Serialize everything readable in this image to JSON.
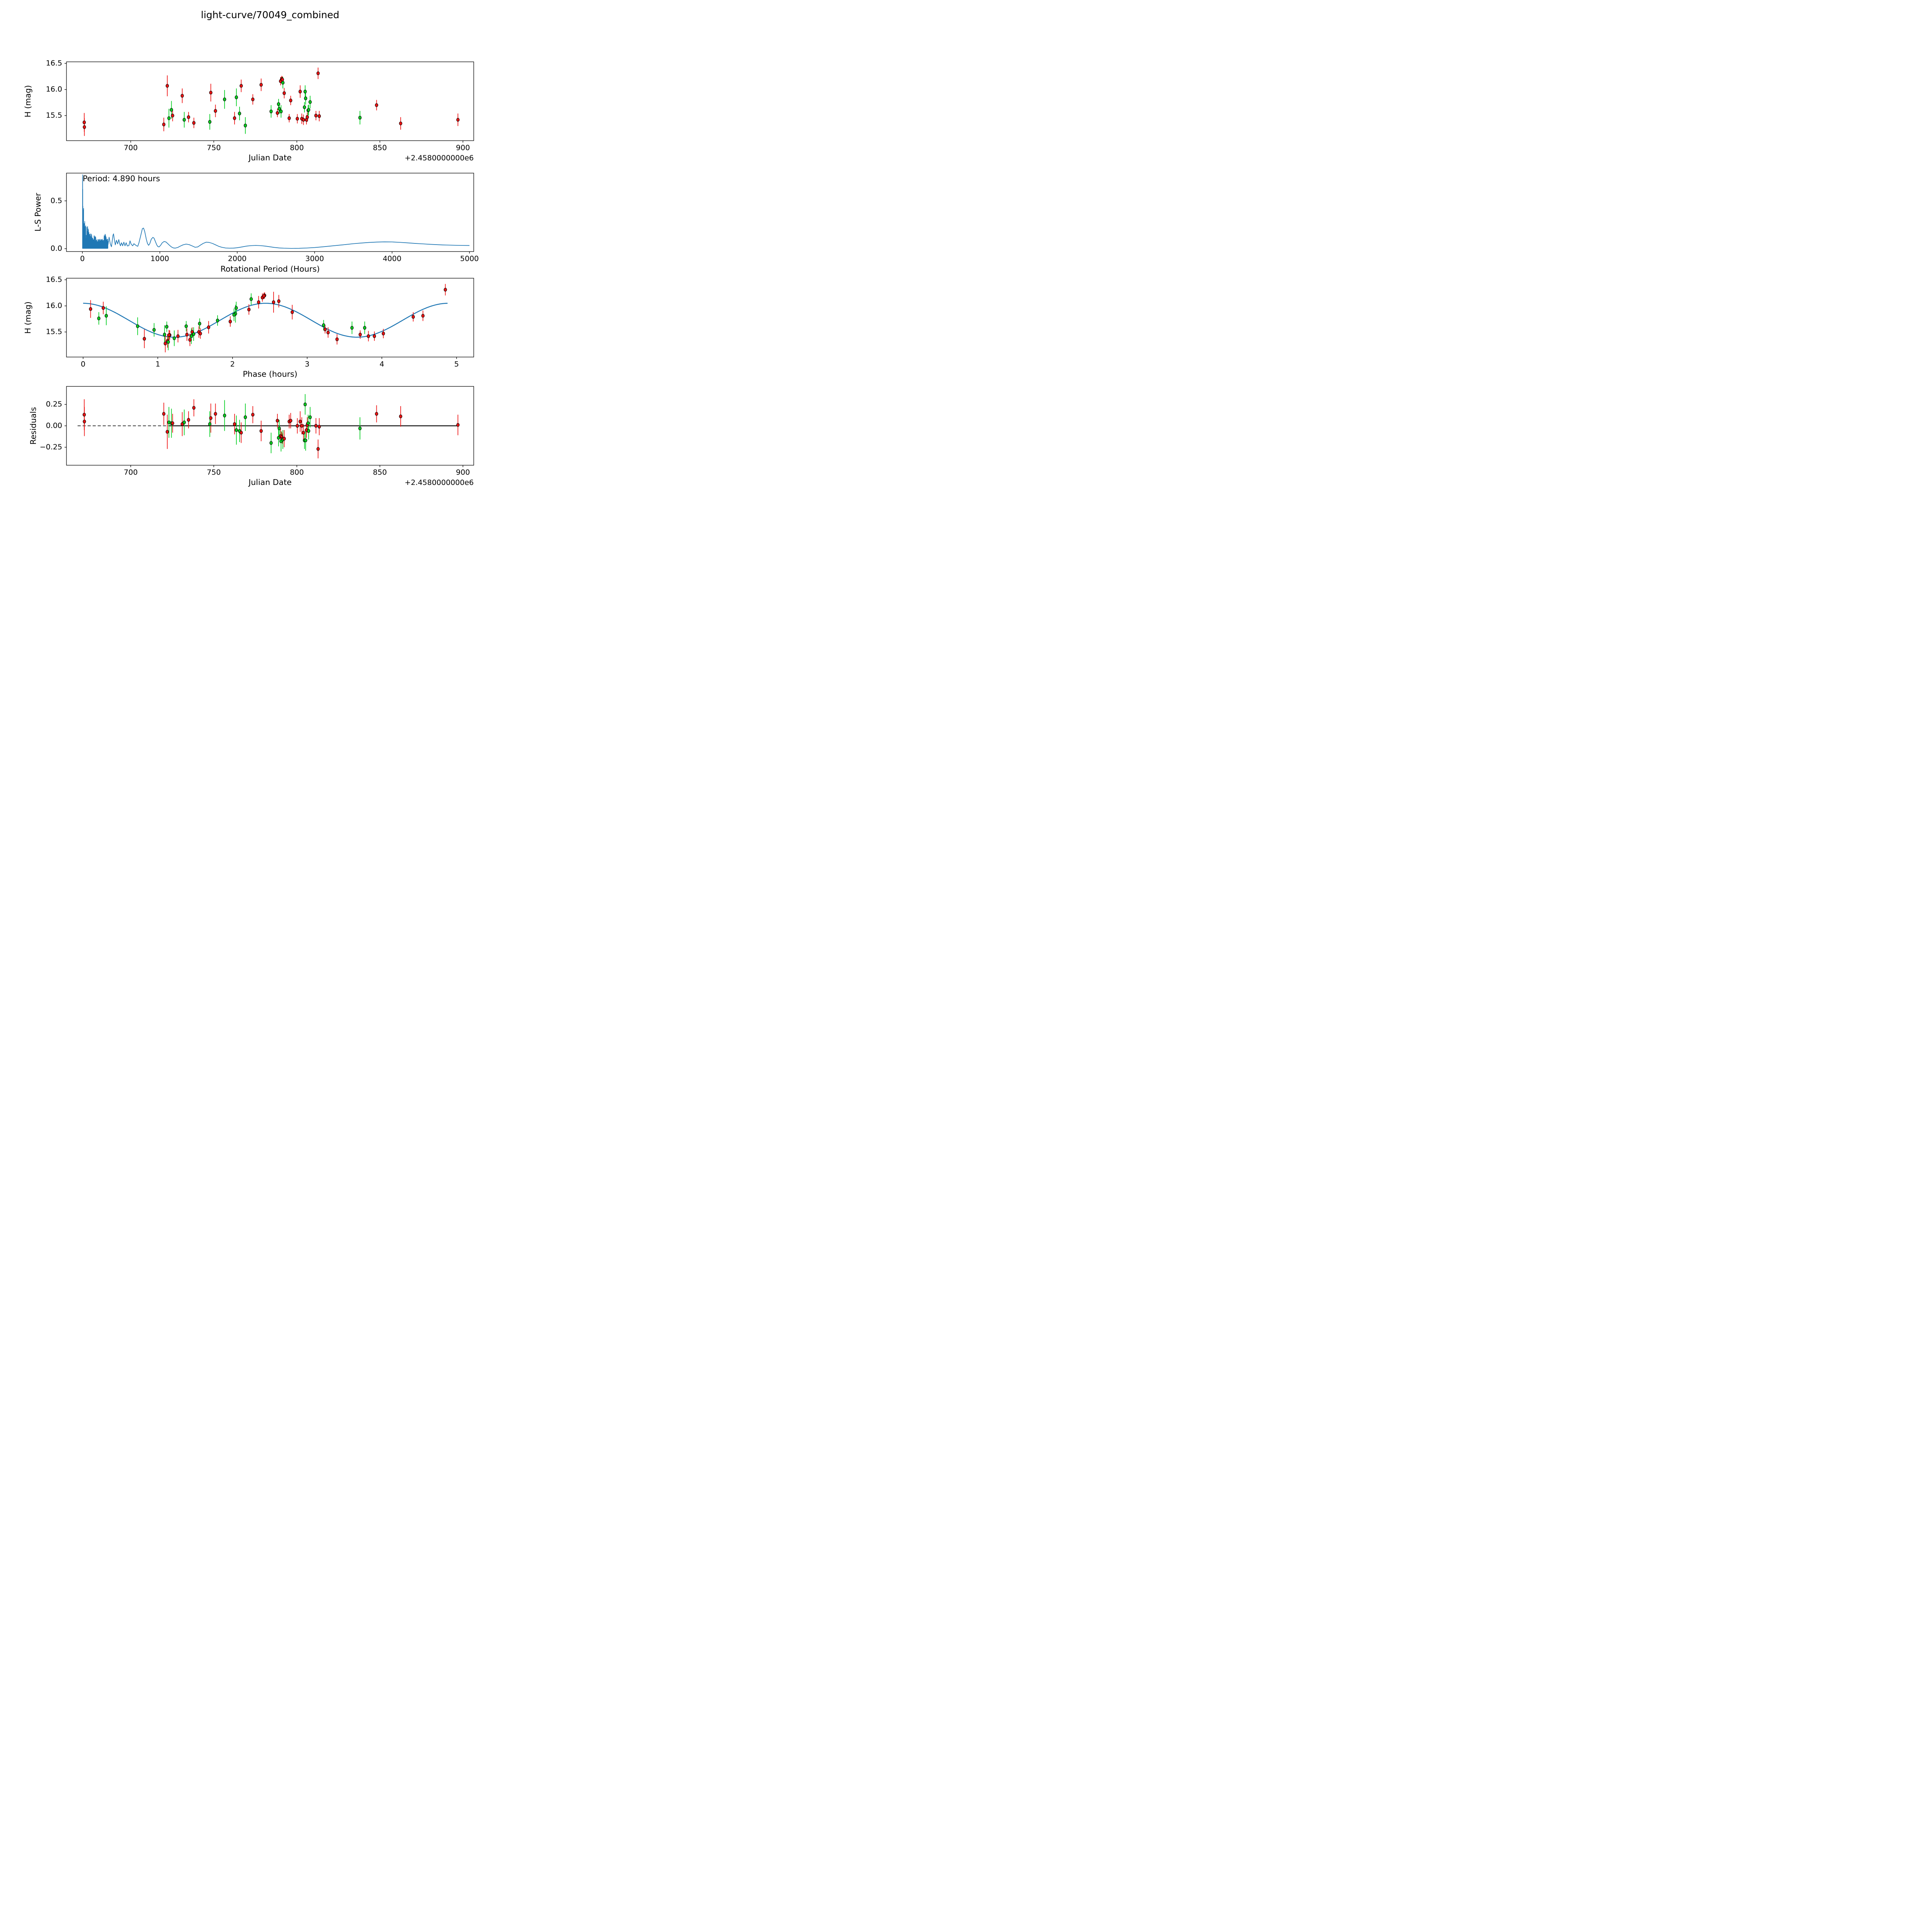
{
  "title": "light-curve/70049_combined",
  "colors": {
    "red_series": "#ee1111",
    "green_series": "#00cd1e",
    "model_line": "#1f77b4",
    "axes": "#000000",
    "background": "#ffffff"
  },
  "observation_fields": [
    "jd",
    "mag",
    "err",
    "color",
    "phase",
    "residual"
  ],
  "observations": [
    [
      672.0,
      15.37,
      0.18,
      "r",
      0.82,
      0.13
    ],
    [
      672.1,
      15.28,
      0.17,
      "r",
      1.1,
      0.05
    ],
    [
      719.9,
      15.33,
      0.13,
      "r",
      1.13,
      0.14
    ],
    [
      722.0,
      16.07,
      0.2,
      "r",
      2.55,
      -0.07
    ],
    [
      723.0,
      15.45,
      0.18,
      "g",
      1.09,
      0.04
    ],
    [
      724.5,
      15.61,
      0.17,
      "g",
      0.73,
      0.03
    ],
    [
      725.2,
      15.5,
      0.11,
      "r",
      1.55,
      0.03
    ],
    [
      731.0,
      15.88,
      0.14,
      "r",
      2.8,
      0.02
    ],
    [
      732.2,
      15.42,
      0.15,
      "g",
      1.45,
      0.04
    ],
    [
      734.8,
      15.47,
      0.1,
      "r",
      1.57,
      0.07
    ],
    [
      738.0,
      15.36,
      0.1,
      "r",
      3.4,
      0.21
    ],
    [
      747.6,
      15.38,
      0.15,
      "g",
      1.22,
      0.02
    ],
    [
      748.2,
      15.94,
      0.17,
      "r",
      0.1,
      0.09
    ],
    [
      751.0,
      15.59,
      0.12,
      "r",
      1.68,
      0.14
    ],
    [
      756.5,
      15.81,
      0.18,
      "g",
      0.31,
      0.12
    ],
    [
      762.5,
      15.45,
      0.12,
      "r",
      1.39,
      0.02
    ],
    [
      763.6,
      15.85,
      0.17,
      "g",
      2.04,
      -0.05
    ],
    [
      765.5,
      15.54,
      0.13,
      "g",
      0.95,
      -0.06
    ],
    [
      766.5,
      16.07,
      0.12,
      "r",
      2.35,
      -0.08
    ],
    [
      769.0,
      15.31,
      0.16,
      "g",
      1.14,
      0.1
    ],
    [
      773.5,
      15.81,
      0.1,
      "r",
      4.55,
      0.13
    ],
    [
      778.5,
      16.09,
      0.12,
      "r",
      2.62,
      -0.06
    ],
    [
      784.5,
      15.58,
      0.12,
      "g",
      3.6,
      -0.2
    ],
    [
      788.3,
      15.55,
      0.08,
      "r",
      3.24,
      0.06
    ],
    [
      789.0,
      15.72,
      0.1,
      "g",
      1.8,
      -0.14
    ],
    [
      789.4,
      15.63,
      0.1,
      "g",
      3.22,
      -0.03
    ],
    [
      790.2,
      16.16,
      0.08,
      "r",
      2.4,
      -0.12
    ],
    [
      790.5,
      15.58,
      0.12,
      "g",
      3.77,
      -0.18
    ],
    [
      790.9,
      16.2,
      0.06,
      "r",
      2.43,
      -0.13
    ],
    [
      791.3,
      16.19,
      0.06,
      "r",
      2.42,
      -0.15
    ],
    [
      791.6,
      16.13,
      0.11,
      "g",
      2.25,
      -0.16
    ],
    [
      792.4,
      15.93,
      0.1,
      "r",
      2.22,
      -0.15
    ],
    [
      795.4,
      15.45,
      0.08,
      "r",
      3.71,
      0.05
    ],
    [
      796.3,
      15.79,
      0.09,
      "r",
      4.42,
      0.06
    ],
    [
      800.3,
      15.44,
      0.09,
      "r",
      1.16,
      0.0
    ],
    [
      802.0,
      15.96,
      0.12,
      "r",
      0.27,
      0.05
    ],
    [
      803.0,
      15.44,
      0.1,
      "r",
      1.15,
      0.0
    ],
    [
      804.0,
      15.42,
      0.1,
      "r",
      3.82,
      -0.08
    ],
    [
      804.6,
      15.66,
      0.1,
      "g",
      1.56,
      -0.17
    ],
    [
      805.0,
      15.96,
      0.12,
      "g",
      2.05,
      0.25
    ],
    [
      805.3,
      15.83,
      0.12,
      "g",
      2.02,
      -0.17
    ],
    [
      805.8,
      15.42,
      0.09,
      "r",
      3.9,
      -0.05
    ],
    [
      806.3,
      15.47,
      0.09,
      "r",
      4.02,
      0.01
    ],
    [
      806.8,
      15.6,
      0.1,
      "g",
      1.12,
      0.03
    ],
    [
      807.1,
      15.61,
      0.1,
      "g",
      1.38,
      -0.06
    ],
    [
      808.0,
      15.76,
      0.12,
      "g",
      0.21,
      0.1
    ],
    [
      811.5,
      15.5,
      0.09,
      "r",
      1.46,
      0.0
    ],
    [
      812.8,
      16.31,
      0.11,
      "r",
      4.85,
      -0.27
    ],
    [
      813.5,
      15.49,
      0.1,
      "r",
      3.28,
      -0.01
    ],
    [
      838.0,
      15.46,
      0.13,
      "g",
      1.48,
      -0.03
    ],
    [
      848.0,
      15.7,
      0.1,
      "r",
      1.97,
      0.14
    ],
    [
      862.5,
      15.35,
      0.12,
      "r",
      1.43,
      0.11
    ],
    [
      897.0,
      15.42,
      0.12,
      "r",
      1.27,
      0.01
    ]
  ],
  "chart_data": [
    {
      "type": "scatter",
      "title": "light-curve/70049_combined",
      "xlabel": "Julian Date",
      "ylabel": "H (mag)",
      "x_offset_label": "+2.4580000000e6",
      "xlim": [
        661.3,
        906.5
      ],
      "ylim": [
        15.02,
        16.53
      ],
      "xticks": [
        700,
        750,
        800,
        850,
        900
      ],
      "xtick_labels": [
        "700",
        "750",
        "800",
        "850",
        "900"
      ],
      "yticks": [
        15.5,
        16.0,
        16.5
      ],
      "ytick_labels": [
        "15.5",
        "16.0",
        "16.5"
      ],
      "grid": false,
      "x_field": "jd",
      "y_field": "mag",
      "err_field": "err"
    },
    {
      "type": "line",
      "xlabel": "Rotational Period (Hours)",
      "ylabel": "L-S Power",
      "annotation": "Period: 4.890 hours",
      "xlim": [
        -206,
        5055
      ],
      "ylim": [
        -0.03,
        0.79
      ],
      "xticks": [
        0,
        1000,
        2000,
        3000,
        4000,
        5000
      ],
      "xtick_labels": [
        "0",
        "1000",
        "2000",
        "3000",
        "4000",
        "5000"
      ],
      "yticks": [
        0.0,
        0.5
      ],
      "ytick_labels": [
        "0.0",
        "0.5"
      ],
      "grid": false,
      "main_peak": {
        "x": 3,
        "power": 0.775
      },
      "comb": {
        "x_start": 1.5,
        "x_end": 330,
        "step": 1.6,
        "baseline": 0.003,
        "envelope": [
          [
            1,
            0.79
          ],
          [
            5,
            0.79
          ],
          [
            12,
            0.5
          ],
          [
            20,
            0.38
          ],
          [
            30,
            0.3
          ],
          [
            45,
            0.24
          ],
          [
            60,
            0.28
          ],
          [
            75,
            0.24
          ],
          [
            90,
            0.18
          ],
          [
            110,
            0.16
          ],
          [
            130,
            0.14
          ],
          [
            150,
            0.15
          ],
          [
            170,
            0.13
          ],
          [
            190,
            0.12
          ],
          [
            210,
            0.11
          ],
          [
            230,
            0.1
          ],
          [
            250,
            0.1
          ],
          [
            270,
            0.11
          ],
          [
            285,
            0.16
          ],
          [
            300,
            0.17
          ],
          [
            315,
            0.12
          ],
          [
            330,
            0.1
          ]
        ]
      },
      "curve_points": [
        [
          330,
          0.04
        ],
        [
          345,
          0.12
        ],
        [
          360,
          0.05
        ],
        [
          375,
          0.02
        ],
        [
          395,
          0.14
        ],
        [
          402,
          0.155
        ],
        [
          412,
          0.1
        ],
        [
          425,
          0.04
        ],
        [
          440,
          0.088
        ],
        [
          455,
          0.05
        ],
        [
          470,
          0.095
        ],
        [
          482,
          0.05
        ],
        [
          492,
          0.03
        ],
        [
          505,
          0.062
        ],
        [
          520,
          0.03
        ],
        [
          535,
          0.068
        ],
        [
          550,
          0.03
        ],
        [
          565,
          0.062
        ],
        [
          580,
          0.028
        ],
        [
          600,
          0.032
        ],
        [
          615,
          0.082
        ],
        [
          630,
          0.046
        ],
        [
          650,
          0.03
        ],
        [
          665,
          0.052
        ],
        [
          680,
          0.042
        ],
        [
          700,
          0.03
        ],
        [
          715,
          0.025
        ],
        [
          730,
          0.06
        ],
        [
          750,
          0.125
        ],
        [
          775,
          0.21
        ],
        [
          790,
          0.215
        ],
        [
          805,
          0.18
        ],
        [
          825,
          0.1
        ],
        [
          840,
          0.055
        ],
        [
          855,
          0.035
        ],
        [
          870,
          0.052
        ],
        [
          890,
          0.1
        ],
        [
          910,
          0.118
        ],
        [
          925,
          0.11
        ],
        [
          945,
          0.07
        ],
        [
          960,
          0.04
        ],
        [
          975,
          0.022
        ],
        [
          990,
          0.018
        ],
        [
          1010,
          0.035
        ],
        [
          1030,
          0.06
        ],
        [
          1055,
          0.075
        ],
        [
          1080,
          0.07
        ],
        [
          1100,
          0.055
        ],
        [
          1125,
          0.035
        ],
        [
          1150,
          0.018
        ],
        [
          1175,
          0.008
        ],
        [
          1200,
          0.006
        ],
        [
          1230,
          0.012
        ],
        [
          1260,
          0.025
        ],
        [
          1300,
          0.04
        ],
        [
          1340,
          0.048
        ],
        [
          1380,
          0.042
        ],
        [
          1420,
          0.028
        ],
        [
          1455,
          0.015
        ],
        [
          1490,
          0.018
        ],
        [
          1520,
          0.035
        ],
        [
          1560,
          0.055
        ],
        [
          1600,
          0.068
        ],
        [
          1640,
          0.065
        ],
        [
          1680,
          0.055
        ],
        [
          1720,
          0.04
        ],
        [
          1760,
          0.025
        ],
        [
          1800,
          0.015
        ],
        [
          1850,
          0.007
        ],
        [
          1900,
          0.005
        ],
        [
          1950,
          0.006
        ],
        [
          2000,
          0.01
        ],
        [
          2060,
          0.018
        ],
        [
          2120,
          0.027
        ],
        [
          2180,
          0.032
        ],
        [
          2240,
          0.034
        ],
        [
          2300,
          0.032
        ],
        [
          2360,
          0.027
        ],
        [
          2420,
          0.02
        ],
        [
          2480,
          0.013
        ],
        [
          2540,
          0.008
        ],
        [
          2600,
          0.005
        ],
        [
          2700,
          0.003
        ],
        [
          2800,
          0.004
        ],
        [
          2900,
          0.007
        ],
        [
          3000,
          0.012
        ],
        [
          3100,
          0.019
        ],
        [
          3200,
          0.027
        ],
        [
          3300,
          0.035
        ],
        [
          3400,
          0.043
        ],
        [
          3500,
          0.052
        ],
        [
          3600,
          0.059
        ],
        [
          3700,
          0.065
        ],
        [
          3800,
          0.069
        ],
        [
          3900,
          0.071
        ],
        [
          4000,
          0.07
        ],
        [
          4100,
          0.066
        ],
        [
          4200,
          0.061
        ],
        [
          4300,
          0.055
        ],
        [
          4400,
          0.05
        ],
        [
          4500,
          0.045
        ],
        [
          4600,
          0.041
        ],
        [
          4700,
          0.038
        ],
        [
          4800,
          0.036
        ],
        [
          4900,
          0.034
        ],
        [
          5000,
          0.033
        ]
      ]
    },
    {
      "type": "scatter",
      "xlabel": "Phase (hours)",
      "ylabel": "H (mag)",
      "xlim": [
        -0.223,
        5.23
      ],
      "ylim": [
        15.02,
        16.53
      ],
      "xticks": [
        0,
        1,
        2,
        3,
        4,
        5
      ],
      "xtick_labels": [
        "0",
        "1",
        "2",
        "3",
        "4",
        "5"
      ],
      "yticks": [
        15.5,
        16.0,
        16.5
      ],
      "ytick_labels": [
        "15.5",
        "16.0",
        "16.5"
      ],
      "grid": false,
      "x_field": "phase",
      "y_field": "mag",
      "err_field": "err",
      "model": {
        "mean": 15.725,
        "amplitude": 0.325,
        "period_hours": 2.445,
        "phase_start": 0.0,
        "phase_end": 4.89,
        "fitted_period_label": "4.890 hours"
      }
    },
    {
      "type": "scatter",
      "xlabel": "Julian Date",
      "ylabel": "Residuals",
      "x_offset_label": "+2.4580000000e6",
      "xlim": [
        661.3,
        906.5
      ],
      "ylim": [
        -0.46,
        0.46
      ],
      "xticks": [
        700,
        750,
        800,
        850,
        900
      ],
      "xtick_labels": [
        "700",
        "750",
        "800",
        "850",
        "900"
      ],
      "yticks": [
        -0.25,
        0.0,
        0.25
      ],
      "ytick_labels": [
        "−0.25",
        "0.00",
        "0.25"
      ],
      "grid": false,
      "x_field": "jd",
      "y_field": "residual",
      "err_field": "err",
      "zero_line": {
        "dashed_range": [
          668,
          723
        ],
        "solid_range": [
          723,
          897
        ]
      }
    }
  ]
}
